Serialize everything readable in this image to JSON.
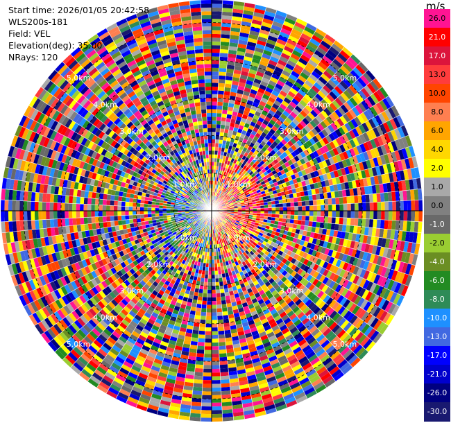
{
  "header": {
    "start_time": "Start time: 2026/01/05 20:42:58",
    "instrument": "WLS200s-181",
    "field": "Field: VEL",
    "elevation": "Elevation(deg): 35.00",
    "nrays": "NRays: 120"
  },
  "colorbar": {
    "unit": "m/s",
    "labels": [
      "26.0",
      "21.0",
      "17.0",
      "13.0",
      "10.0",
      "8.0",
      "6.0",
      "4.0",
      "2.0",
      "1.0",
      "0.0",
      "-1.0",
      "-2.0",
      "-4.0",
      "-6.0",
      "-8.0",
      "-10.0",
      "-13.0",
      "-17.0",
      "-21.0",
      "-26.0",
      "-30.0"
    ],
    "colors": [
      "#ff1493",
      "#ff0000",
      "#dc143c",
      "#ff3c3c",
      "#ff4500",
      "#ff7f50",
      "#ffa500",
      "#ffd700",
      "#ffff00",
      "#a9a9a9",
      "#808080",
      "#696969",
      "#9acd32",
      "#6b8e23",
      "#228b22",
      "#2e8b57",
      "#1e90ff",
      "#4169e1",
      "#0000ff",
      "#0000cd",
      "#000080",
      "#191970"
    ]
  },
  "chart_data": {
    "type": "polar-ppi",
    "field": "VEL",
    "unit": "m/s",
    "n_rays": 120,
    "elevation_deg": 35.0,
    "range_ring_labels": [
      "1.0km",
      "2.0km",
      "3.0km",
      "4.0km",
      "5.0km"
    ],
    "max_range_km": 5.6,
    "value_range": [
      -30.0,
      26.0
    ]
  }
}
